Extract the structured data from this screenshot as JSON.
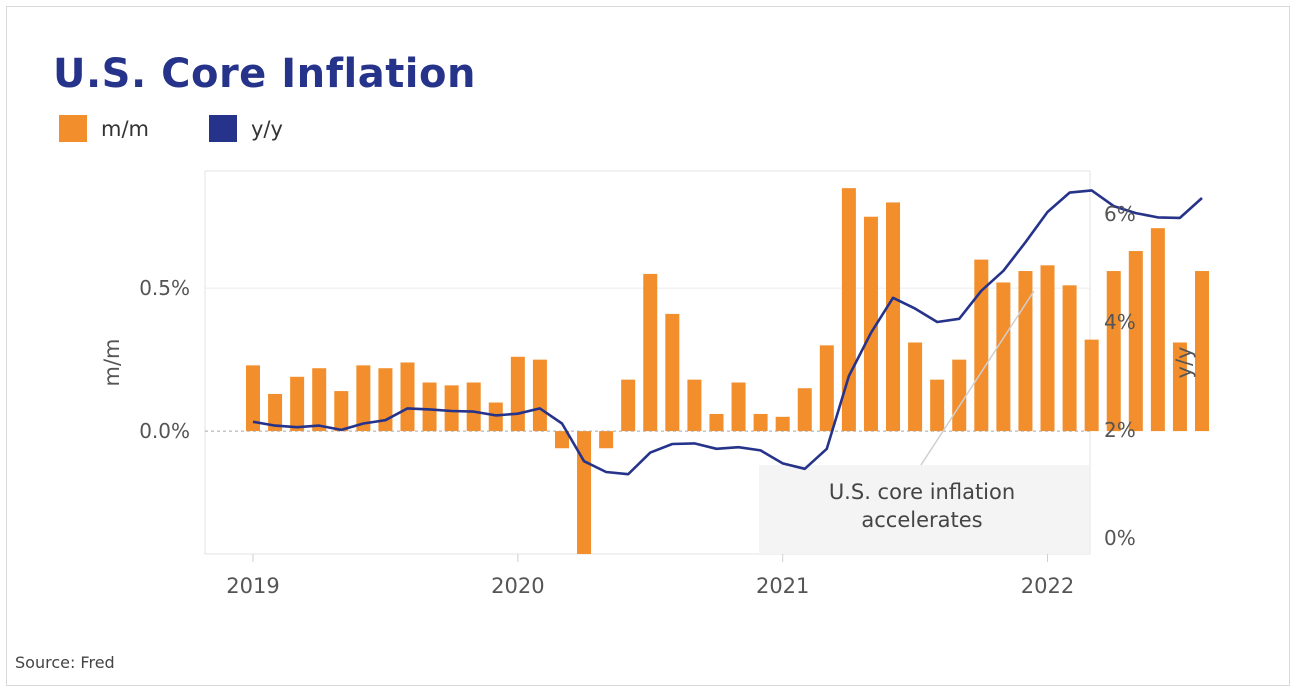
{
  "title": "U.S. Core Inflation",
  "source": "Source: Fred",
  "legend": [
    {
      "label": "m/m",
      "color": "#f28e2b"
    },
    {
      "label": "y/y",
      "color": "#26338a"
    }
  ],
  "annotation": {
    "line1": "U.S. core inflation",
    "line2": "accelerates"
  },
  "chart_data": {
    "type": "bar",
    "title": "U.S. Core Inflation",
    "x_tick_labels": [
      "2019",
      "2020",
      "2021",
      "2022"
    ],
    "left_axis": {
      "label": "m/m",
      "tick_labels": [
        "0.0%",
        "0.5%"
      ],
      "ylim": [
        -0.43,
        0.91
      ]
    },
    "right_axis": {
      "label": "y/y",
      "tick_labels": [
        "0%",
        "2%",
        "4%",
        "6%"
      ],
      "ylim": [
        -0.3,
        6.8
      ]
    },
    "grid": "horizontal",
    "legend_position": "top-left",
    "categories": [
      "2019-01",
      "2019-02",
      "2019-03",
      "2019-04",
      "2019-05",
      "2019-06",
      "2019-07",
      "2019-08",
      "2019-09",
      "2019-10",
      "2019-11",
      "2019-12",
      "2020-01",
      "2020-02",
      "2020-03",
      "2020-04",
      "2020-05",
      "2020-06",
      "2020-07",
      "2020-08",
      "2020-09",
      "2020-10",
      "2020-11",
      "2020-12",
      "2021-01",
      "2021-02",
      "2021-03",
      "2021-04",
      "2021-05",
      "2021-06",
      "2021-07",
      "2021-08",
      "2021-09",
      "2021-10",
      "2021-11",
      "2021-12",
      "2022-01",
      "2022-02",
      "2022-03",
      "2022-04",
      "2022-05",
      "2022-06",
      "2022-07",
      "2022-08"
    ],
    "series": [
      {
        "name": "m/m",
        "type": "bar",
        "axis": "left",
        "color": "#f28e2b",
        "values": [
          0.23,
          0.13,
          0.19,
          0.22,
          0.14,
          0.23,
          0.22,
          0.24,
          0.17,
          0.16,
          0.17,
          0.1,
          0.26,
          0.25,
          -0.06,
          -0.43,
          -0.06,
          0.18,
          0.55,
          0.41,
          0.18,
          0.06,
          0.17,
          0.06,
          0.05,
          0.15,
          0.3,
          0.85,
          0.75,
          0.8,
          0.31,
          0.18,
          0.25,
          0.6,
          0.52,
          0.56,
          0.58,
          0.51,
          0.32,
          0.56,
          0.63,
          0.71,
          0.31,
          0.56
        ]
      },
      {
        "name": "y/y",
        "type": "line",
        "axis": "right",
        "color": "#26338a",
        "values": [
          2.15,
          2.08,
          2.05,
          2.08,
          2.0,
          2.12,
          2.18,
          2.4,
          2.38,
          2.35,
          2.34,
          2.27,
          2.3,
          2.4,
          2.12,
          1.42,
          1.22,
          1.18,
          1.58,
          1.74,
          1.75,
          1.65,
          1.68,
          1.62,
          1.38,
          1.28,
          1.65,
          3.0,
          3.8,
          4.45,
          4.25,
          4.0,
          4.06,
          4.58,
          4.95,
          5.48,
          6.04,
          6.4,
          6.44,
          6.15,
          6.02,
          5.94,
          5.93,
          6.3
        ]
      }
    ]
  }
}
